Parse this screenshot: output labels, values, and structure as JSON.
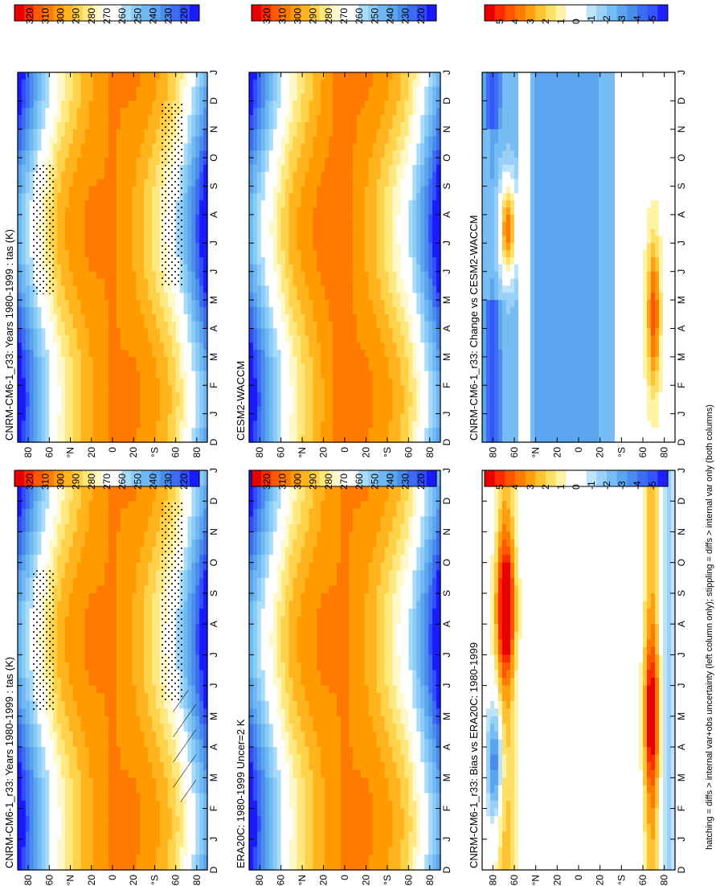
{
  "figure": {
    "footnote": "hatching = diffs > internal var+obs uncertainty (left column only); stippling = diffs > internal var only (both columns)"
  },
  "palettes": {
    "temperature": [
      "#1a1aff",
      "#2f4dff",
      "#3c6cf2",
      "#4a8ceb",
      "#5aa5ee",
      "#6fb8f3",
      "#8acbf7",
      "#a9dcfa",
      "#ffffff",
      "#ffffff",
      "#fff8c8",
      "#ffe880",
      "#ffd24a",
      "#ffb41e",
      "#ff9a00",
      "#ff7a00",
      "#ff5a00",
      "#ff2a00",
      "#e80000"
    ],
    "difference": [
      "#2020ff",
      "#3355ff",
      "#3c6cf2",
      "#4a8ceb",
      "#5aa5ee",
      "#76bdf5",
      "#99d0f8",
      "#bde3fb",
      "#ffffff",
      "#ffffff",
      "#fff3a6",
      "#ffe066",
      "#ffc233",
      "#ff9f10",
      "#ff7a00",
      "#ff5500",
      "#ff2a00",
      "#e80000"
    ]
  },
  "chart_data": [
    {
      "type": "heatmap",
      "panel": "top-left",
      "title": "CNRM-CM6-1_r33: Years 1980-1999 : tas (K)",
      "x_ticks": [
        "D",
        "J",
        "F",
        "M",
        "A",
        "M",
        "J",
        "J",
        "A",
        "S",
        "O",
        "N",
        "D",
        "J"
      ],
      "y_ticks": [
        "80",
        "60",
        "°N",
        "20",
        "0",
        "20",
        "°S",
        "60",
        "80"
      ],
      "xlim_months": [
        0,
        13
      ],
      "ylim_lat": [
        -90,
        90
      ],
      "kind": "climatology",
      "colorbar": {
        "labels": [
          "320",
          "310",
          "300",
          "290",
          "280",
          "270",
          "260",
          "250",
          "240",
          "230",
          "220"
        ],
        "palette": "temperature",
        "range": [
          215,
          325
        ]
      },
      "hatching": "diffs > internal var+obs uncertainty",
      "stippling": "diffs > internal var"
    },
    {
      "type": "heatmap",
      "panel": "top-right",
      "title": "CNRM-CM6-1_r33: Years 1980-1999 : tas (K)",
      "x_ticks": [
        "D",
        "J",
        "F",
        "M",
        "A",
        "M",
        "J",
        "J",
        "A",
        "S",
        "O",
        "N",
        "D",
        "J"
      ],
      "y_ticks": [
        "80",
        "60",
        "°N",
        "20",
        "0",
        "20",
        "°S",
        "60",
        "80"
      ],
      "xlim_months": [
        0,
        13
      ],
      "ylim_lat": [
        -90,
        90
      ],
      "kind": "climatology",
      "colorbar": {
        "labels": [
          "320",
          "310",
          "300",
          "290",
          "280",
          "270",
          "260",
          "250",
          "240",
          "230",
          "220"
        ],
        "palette": "temperature",
        "range": [
          215,
          325
        ]
      },
      "stippling": "diffs > internal var"
    },
    {
      "type": "heatmap",
      "panel": "middle-left",
      "title": "ERA20C: 1980-1999 Uncer=2 K",
      "x_ticks": [
        "D",
        "J",
        "F",
        "M",
        "A",
        "M",
        "J",
        "J",
        "A",
        "S",
        "O",
        "N",
        "D",
        "J"
      ],
      "y_ticks": [
        "80",
        "60",
        "°N",
        "20",
        "0",
        "20",
        "°S",
        "60",
        "80"
      ],
      "xlim_months": [
        0,
        13
      ],
      "ylim_lat": [
        -90,
        90
      ],
      "kind": "climatology",
      "colorbar": {
        "labels": [
          "320",
          "310",
          "300",
          "290",
          "280",
          "270",
          "260",
          "250",
          "240",
          "230",
          "220"
        ],
        "palette": "temperature",
        "range": [
          215,
          325
        ]
      }
    },
    {
      "type": "heatmap",
      "panel": "middle-right",
      "title": "CESM2-WACCM",
      "x_ticks": [
        "D",
        "J",
        "F",
        "M",
        "A",
        "M",
        "J",
        "J",
        "A",
        "S",
        "O",
        "N",
        "D",
        "J"
      ],
      "y_ticks": [
        "80",
        "60",
        "°N",
        "20",
        "0",
        "20",
        "°S",
        "60",
        "80"
      ],
      "xlim_months": [
        0,
        13
      ],
      "ylim_lat": [
        -90,
        90
      ],
      "kind": "climatology",
      "colorbar": {
        "labels": [
          "320",
          "310",
          "300",
          "290",
          "280",
          "270",
          "260",
          "250",
          "240",
          "230",
          "220"
        ],
        "palette": "temperature",
        "range": [
          215,
          325
        ]
      }
    },
    {
      "type": "heatmap",
      "panel": "bottom-left",
      "title": "CNRM-CM6-1_r33: Bias vs ERA20C: 1980-1999",
      "x_ticks": [
        "D",
        "J",
        "F",
        "M",
        "A",
        "M",
        "J",
        "J",
        "A",
        "S",
        "O",
        "N",
        "D",
        "J"
      ],
      "y_ticks": [
        "80",
        "60",
        "°N",
        "20",
        "0",
        "20",
        "°S",
        "60",
        "80"
      ],
      "xlim_months": [
        0,
        13
      ],
      "ylim_lat": [
        -90,
        90
      ],
      "kind": "bias",
      "colorbar": {
        "labels": [
          "5",
          "4",
          "3",
          "2",
          "1",
          "0",
          "-1",
          "-2",
          "-3",
          "-4",
          "-5"
        ],
        "palette": "difference",
        "range": [
          -5.5,
          5.5
        ]
      }
    },
    {
      "type": "heatmap",
      "panel": "bottom-right",
      "title": "CNRM-CM6-1_r33: Change vs CESM2-WACCM",
      "x_ticks": [
        "D",
        "J",
        "F",
        "M",
        "A",
        "M",
        "J",
        "J",
        "A",
        "S",
        "O",
        "N",
        "D",
        "J"
      ],
      "y_ticks": [
        "80",
        "60",
        "°N",
        "20",
        "0",
        "20",
        "°S",
        "60",
        "80"
      ],
      "xlim_months": [
        0,
        13
      ],
      "ylim_lat": [
        -90,
        90
      ],
      "kind": "change",
      "colorbar": {
        "labels": [
          "5",
          "4",
          "3",
          "2",
          "1",
          "0",
          "-1",
          "-2",
          "-3",
          "-4",
          "-5"
        ],
        "palette": "difference",
        "range": [
          -5.5,
          5.5
        ]
      }
    }
  ]
}
